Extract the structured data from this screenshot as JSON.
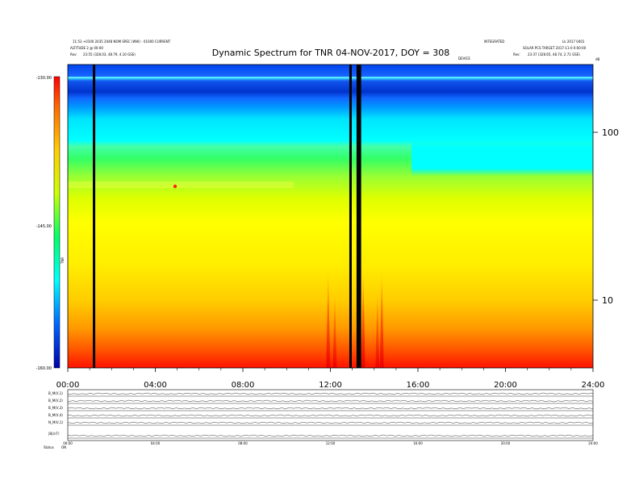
{
  "header": {
    "title": "Dynamic Spectrum for TNR 04-NOV-2017, DOY = 308",
    "left_line1": "11:53 +0100 2035 2048 NOM SPEC (WW) - 01000 CURRENT",
    "left_line2": "ALTITUDE 2 @ 00:00",
    "left_line3_label": "Rev:",
    "left_line3_value": "23:55 (328.03, 48.79, 4.10 GSE)",
    "right_line1_a": "INTEGRATED",
    "right_line1_b": "Lk 2017 0401",
    "right_line2": "SOLAR PCS TARGET 2017-11-0 0:00:00",
    "right_line3_label": "Rev:",
    "right_line3_value": "23:37 (328.65, 48.74, 2.71 GSE)",
    "right_corner": "dB",
    "top_axis_label": "DEVICE"
  },
  "colorbar": {
    "ticks": [
      "-130.00",
      "-145.00",
      "-160.00"
    ],
    "label": "TNR",
    "colors": [
      "#ff0000",
      "#ff8800",
      "#ffff00",
      "#00ff66",
      "#00ffff",
      "#0088ff",
      "#0000aa"
    ]
  },
  "panels": {
    "labels": [
      "B_M(V,1)",
      "B_M(V,2)",
      "B_M(V,3)",
      "B_M(V,4)",
      "N_M(V,1)",
      "|B|(nT)"
    ],
    "footer_labels": [
      "Status",
      "ON"
    ]
  },
  "chart_data": {
    "type": "heatmap",
    "title": "Dynamic Spectrum for TNR 04-NOV-2017, DOY = 308",
    "x_label": "",
    "x_ticks": [
      "00:00",
      "04:00",
      "08:00",
      "12:00",
      "16:00",
      "20:00",
      "24:00"
    ],
    "x_range": [
      0,
      24
    ],
    "y_scale": "log",
    "y_right_ticks": [
      "100",
      "10"
    ],
    "colorbar_ticks": [
      "-130.00",
      "-145.00",
      "-160.00"
    ],
    "colorbar_label": "TNR",
    "data_gaps_hours": [
      1.2,
      12.92,
      13.25,
      13.35
    ],
    "intensity_bands_top_to_bottom": [
      "deep blue",
      "blue",
      "cyan",
      "green",
      "yellow",
      "orange",
      "red"
    ],
    "bursts_hours": [
      11.9,
      12.2,
      13.5,
      14.15,
      14.35
    ],
    "red_spot_hour": 4.9
  }
}
